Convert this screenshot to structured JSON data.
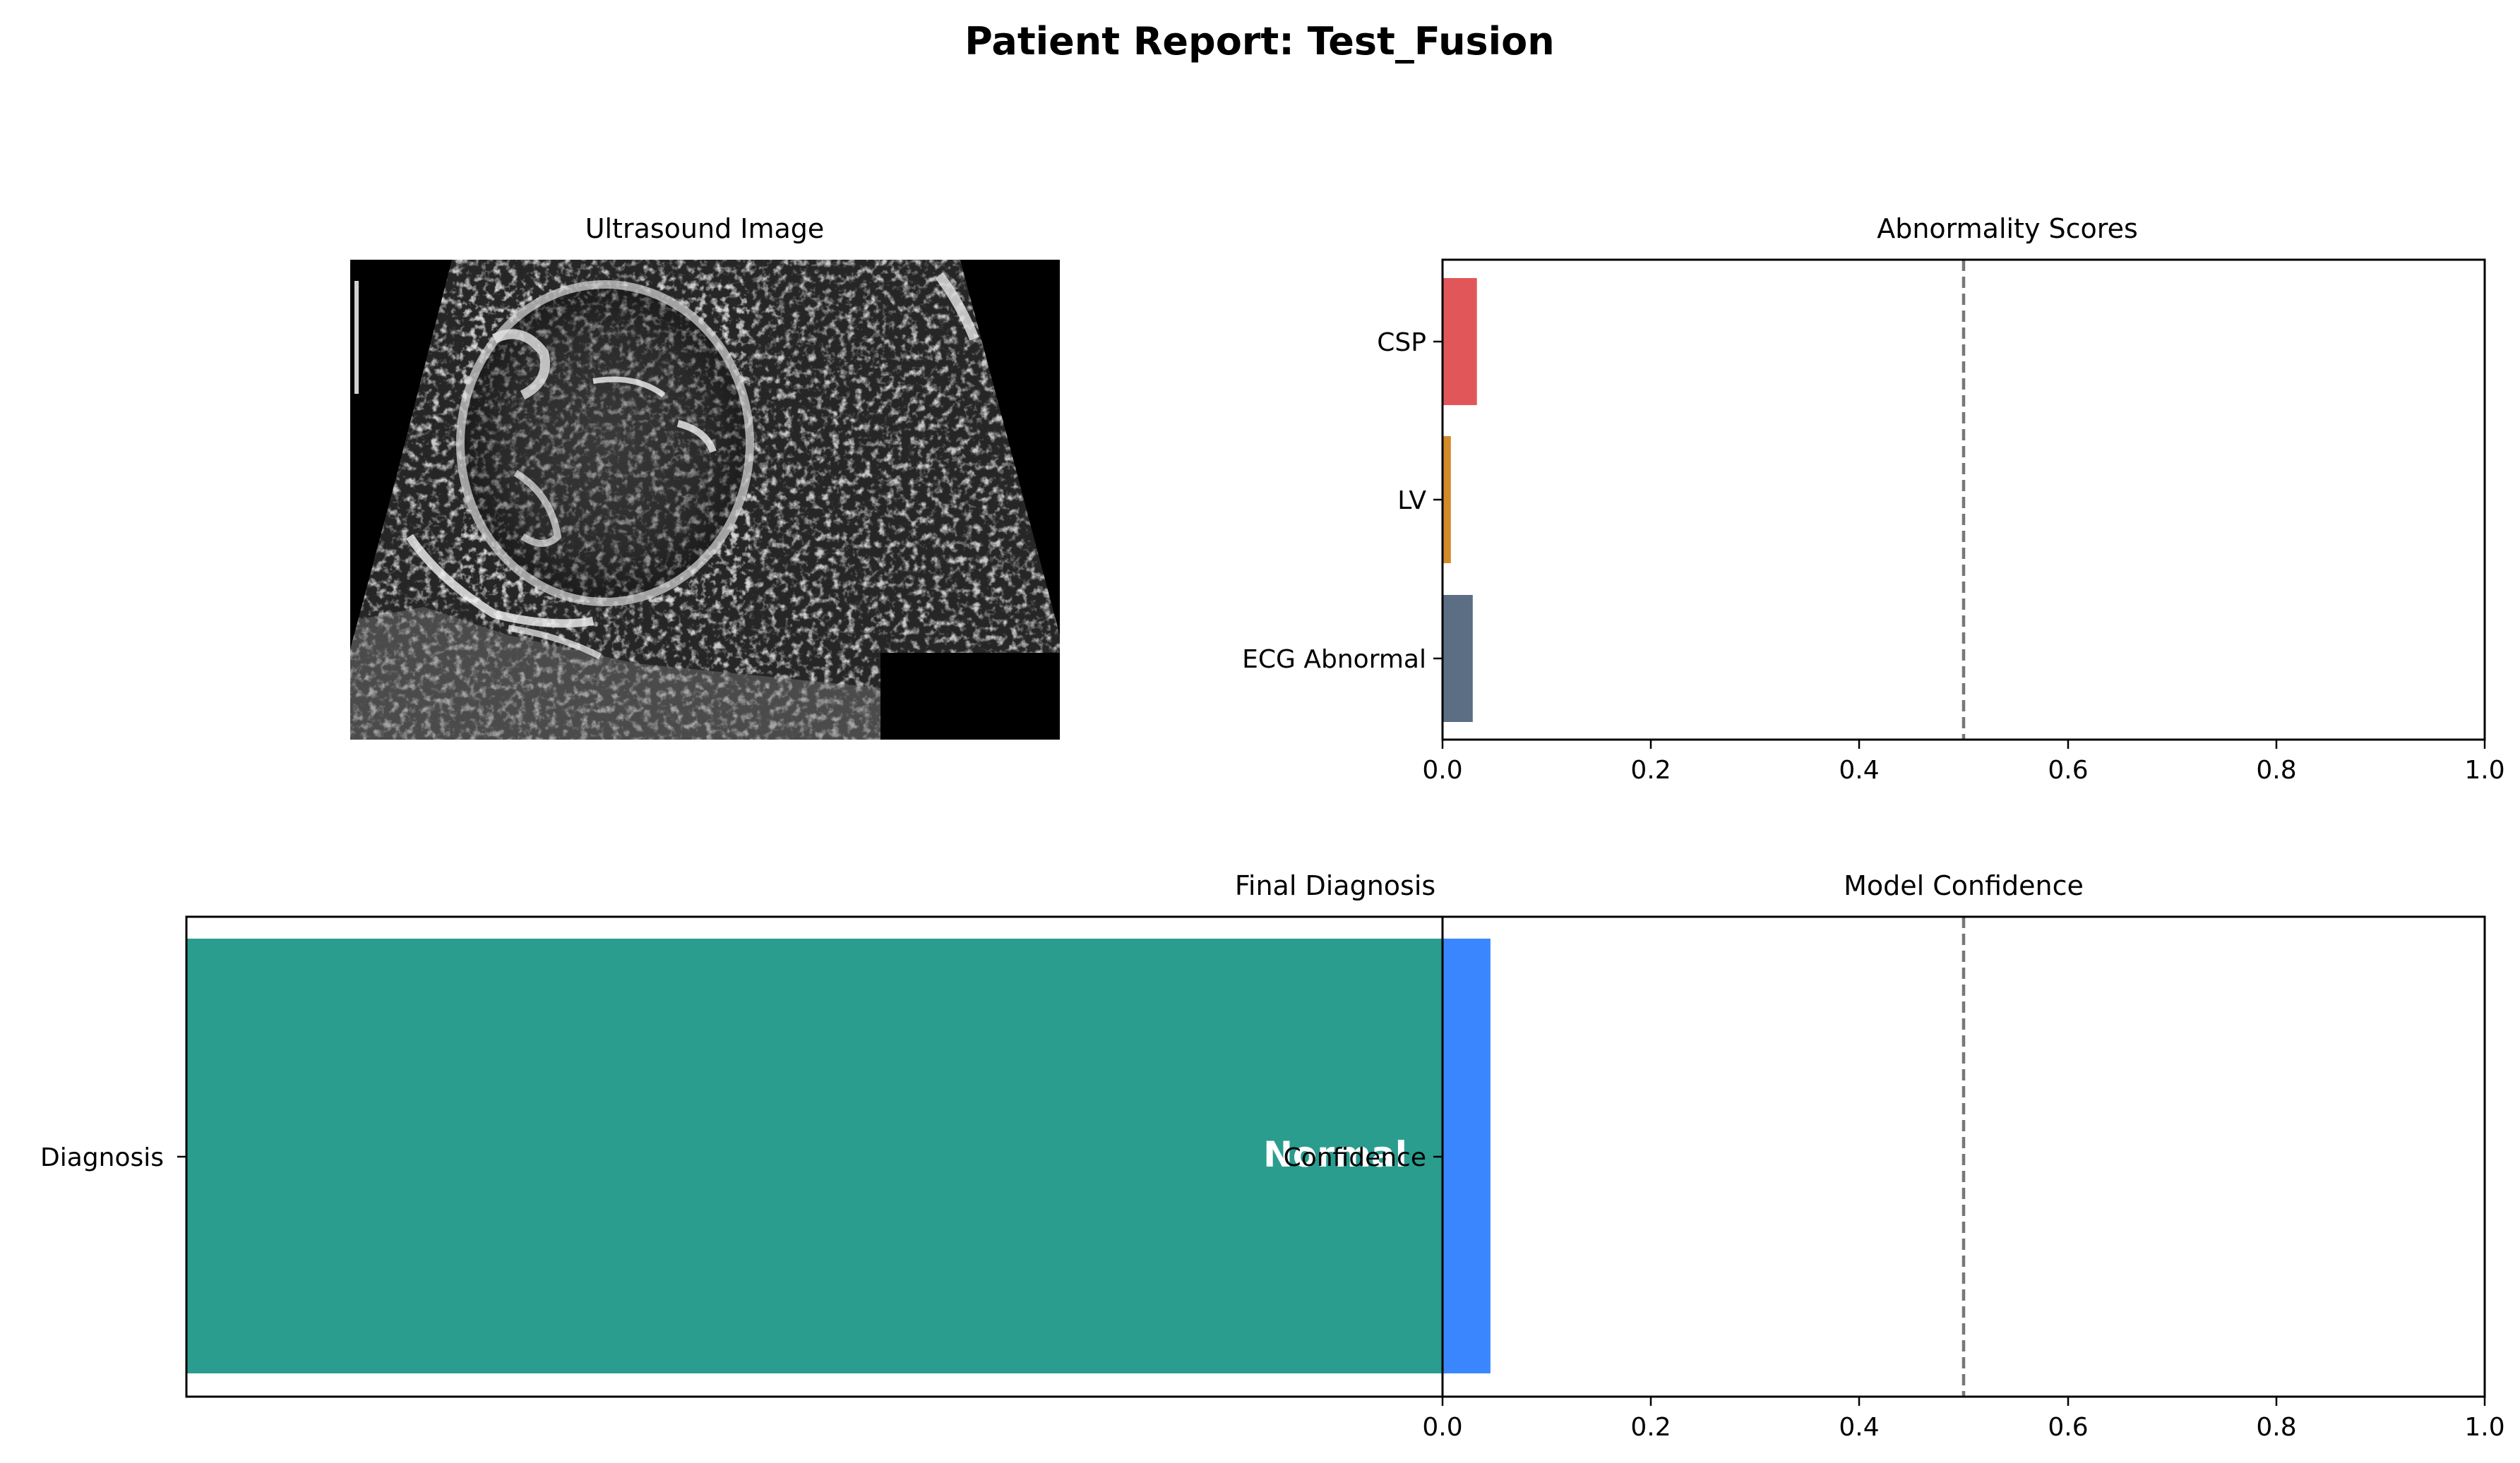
{
  "page_title": "Patient Report: Test_Fusion",
  "colors": {
    "csp": "#e15759",
    "lv": "#d4892a",
    "ecg": "#5b6e84",
    "diagnosis": "#2a9d8f",
    "confidence": "#3a86ff",
    "threshold": "#777777"
  },
  "chart_data": [
    {
      "panel": "ultrasound",
      "type": "image",
      "title": "Ultrasound Image"
    },
    {
      "panel": "abnormality",
      "type": "bar",
      "orientation": "horizontal",
      "title": "Abnormality Scores",
      "categories": [
        "CSP",
        "LV",
        "ECG Abnormal"
      ],
      "values": [
        0.033,
        0.008,
        0.029
      ],
      "colors": [
        "#e15759",
        "#d4892a",
        "#5b6e84"
      ],
      "xlim": [
        0,
        1
      ],
      "xticks": [
        "0.0",
        "0.2",
        "0.4",
        "0.6",
        "0.8",
        "1.0"
      ],
      "threshold": 0.5,
      "grid": false
    },
    {
      "panel": "diagnosis",
      "type": "bar",
      "orientation": "horizontal",
      "title": "Final Diagnosis",
      "categories": [
        "Diagnosis"
      ],
      "values": [
        1
      ],
      "label": "Normal",
      "color": "#2a9d8f"
    },
    {
      "panel": "confidence",
      "type": "bar",
      "orientation": "horizontal",
      "title": "Model Confidence",
      "categories": [
        "Confidence"
      ],
      "values": [
        0.046
      ],
      "color": "#3a86ff",
      "xlim": [
        0,
        1
      ],
      "xticks": [
        "0.0",
        "0.2",
        "0.4",
        "0.6",
        "0.8",
        "1.0"
      ],
      "threshold": 0.5,
      "grid": false
    }
  ]
}
